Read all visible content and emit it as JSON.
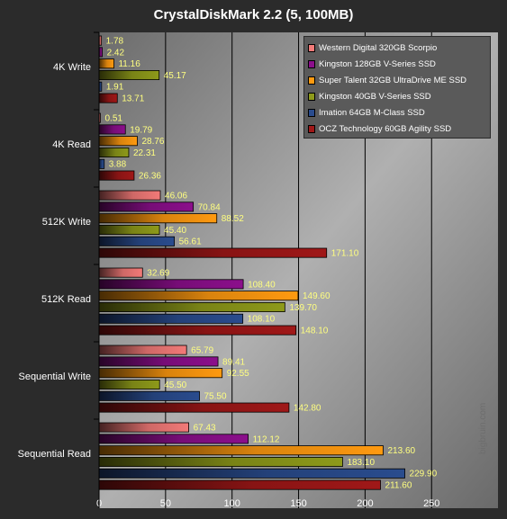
{
  "chart_data": {
    "type": "bar",
    "orientation": "horizontal",
    "title": "CrystalDiskMark 2.2 (5, 100MB)",
    "xlabel": "",
    "ylabel": "",
    "xlim": [
      0,
      300
    ],
    "x_ticks": [
      "0",
      "50",
      "100",
      "150",
      "200",
      "250"
    ],
    "categories": [
      "4K Write",
      "4K Read",
      "512K Write",
      "512K Read",
      "Sequential Write",
      "Sequential Read"
    ],
    "legend_position": "top-right",
    "grid": true,
    "series": [
      {
        "name": "Western Digital 320GB Scorpio",
        "color": "#f27a78",
        "values": [
          1.78,
          0.51,
          46.06,
          32.69,
          65.79,
          67.43
        ],
        "labels": [
          "1.78",
          "0.51",
          "46.06",
          "32.69",
          "65.79",
          "67.43"
        ]
      },
      {
        "name": "Kingston 128GB V-Series SSD",
        "color": "#8c0f8c",
        "values": [
          2.42,
          19.79,
          70.84,
          108.4,
          89.41,
          112.12
        ],
        "labels": [
          "2.42",
          "19.79",
          "70.84",
          "108.40",
          "89.41",
          "112.12"
        ]
      },
      {
        "name": "Super Talent 32GB UltraDrive ME SSD",
        "color": "#ff9a10",
        "values": [
          11.16,
          28.76,
          88.52,
          149.6,
          92.55,
          213.6
        ],
        "labels": [
          "11.16",
          "28.76",
          "88.52",
          "149.60",
          "92.55",
          "213.60"
        ]
      },
      {
        "name": "Kingston 40GB V-Series SSD",
        "color": "#8e9a1a",
        "values": [
          45.17,
          22.31,
          45.4,
          139.7,
          45.5,
          183.1
        ],
        "labels": [
          "45.17",
          "22.31",
          "45.40",
          "139.70",
          "45.50",
          "183.10"
        ]
      },
      {
        "name": "Imation 64GB M-Class SSD",
        "color": "#2a4c8e",
        "values": [
          1.91,
          3.88,
          56.61,
          108.1,
          75.5,
          229.9
        ],
        "labels": [
          "1.91",
          "3.88",
          "56.61",
          "108.10",
          "75.50",
          "229.90"
        ]
      },
      {
        "name": "OCZ Technology 60GB Agility SSD",
        "color": "#a01818",
        "values": [
          13.71,
          26.36,
          171.1,
          148.1,
          142.8,
          211.6
        ],
        "labels": [
          "13.71",
          "26.36",
          "171.10",
          "148.10",
          "142.80",
          "211.60"
        ]
      }
    ]
  },
  "watermark": "bigbruin.com"
}
